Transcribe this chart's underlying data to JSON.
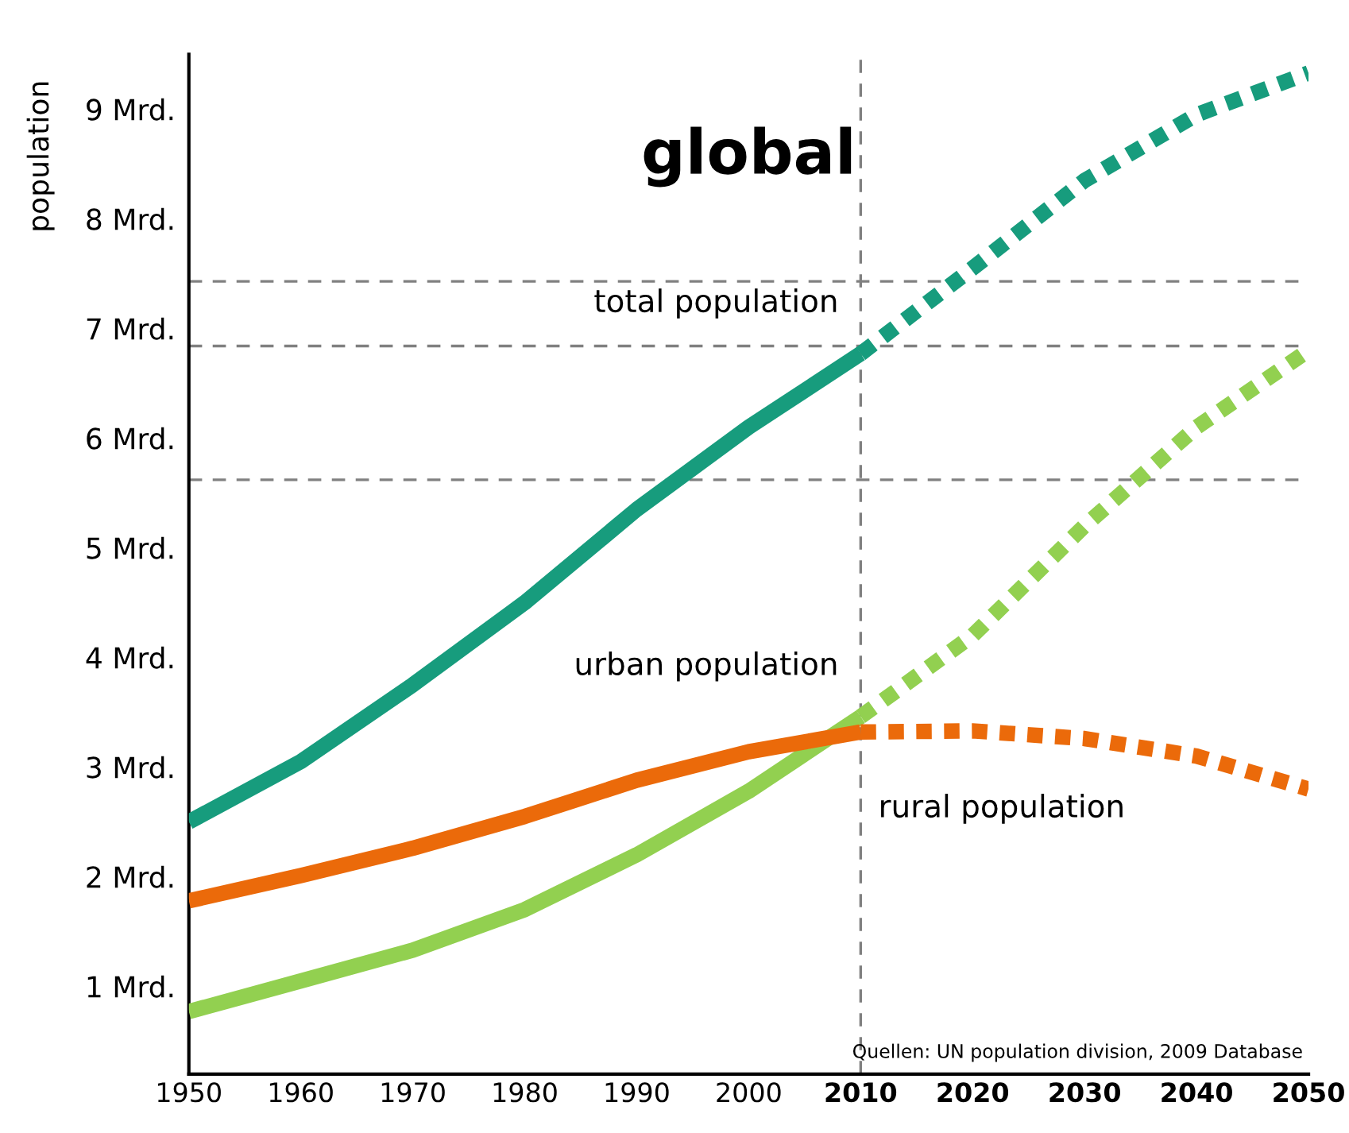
{
  "chart_data": {
    "type": "line",
    "title": "global",
    "ylabel": "population",
    "xlim": [
      1950,
      2050
    ],
    "ylim": [
      0.2,
      9.5
    ],
    "xticks": [
      1950,
      1960,
      1970,
      1980,
      1990,
      2000,
      2010,
      2020,
      2030,
      2040,
      2050
    ],
    "yticks": [
      {
        "value": 1,
        "label": "1 Mrd."
      },
      {
        "value": 2,
        "label": "2 Mrd."
      },
      {
        "value": 3,
        "label": "3 Mrd."
      },
      {
        "value": 4,
        "label": "4 Mrd."
      },
      {
        "value": 5,
        "label": "5 Mrd."
      },
      {
        "value": 6,
        "label": "6 Mrd."
      },
      {
        "value": 7,
        "label": "7 Mrd."
      },
      {
        "value": 8,
        "label": "8 Mrd."
      },
      {
        "value": 9,
        "label": "9 Mrd."
      }
    ],
    "grid": false,
    "legend": false,
    "marker": "none",
    "series": [
      {
        "name": "total population",
        "color": "#179c7d",
        "line_style": "solid",
        "x": [
          1950,
          1960,
          1970,
          1980,
          1990,
          2000,
          2010
        ],
        "values": [
          2.5,
          3.05,
          3.75,
          4.5,
          5.35,
          6.1,
          6.77
        ]
      },
      {
        "color": "#179c7d",
        "line_style": "dotted",
        "x": [
          2010,
          2020,
          2030,
          2040,
          2050
        ],
        "values": [
          6.77,
          7.55,
          8.35,
          8.95,
          9.33
        ]
      },
      {
        "name": "urban population",
        "color": "#92d050",
        "line_style": "solid",
        "x": [
          1950,
          1960,
          1970,
          1980,
          1990,
          2000,
          2010
        ],
        "values": [
          0.77,
          1.05,
          1.33,
          1.7,
          2.2,
          2.78,
          3.46
        ]
      },
      {
        "color": "#92d050",
        "line_style": "dotted",
        "x": [
          2010,
          2020,
          2030,
          2040,
          2050
        ],
        "values": [
          3.46,
          4.2,
          5.2,
          6.1,
          6.8
        ]
      },
      {
        "name": "rural population",
        "color": "#eb6a0a",
        "line_style": "solid",
        "x": [
          1950,
          1960,
          1970,
          1980,
          1990,
          2000,
          2010
        ],
        "values": [
          1.78,
          2.01,
          2.26,
          2.55,
          2.88,
          3.14,
          3.32
        ]
      },
      {
        "color": "#eb6a0a",
        "line_style": "dotted",
        "x": [
          2010,
          2020,
          2030,
          2040,
          2050
        ],
        "values": [
          3.32,
          3.33,
          3.26,
          3.1,
          2.8
        ]
      }
    ],
    "ref_lines": [
      {
        "axis": "y",
        "value": 7.43,
        "color": "#808080",
        "line_style": "dashed"
      },
      {
        "axis": "y",
        "value": 6.84,
        "color": "#808080",
        "line_style": "dashed"
      },
      {
        "axis": "y",
        "value": 5.62,
        "color": "#808080",
        "line_style": "dashed"
      },
      {
        "axis": "x",
        "value": 2010,
        "color": "#808080",
        "line_style": "dashed"
      }
    ],
    "annotations": [
      "Quellen: UN population division, 2009 Database"
    ]
  }
}
